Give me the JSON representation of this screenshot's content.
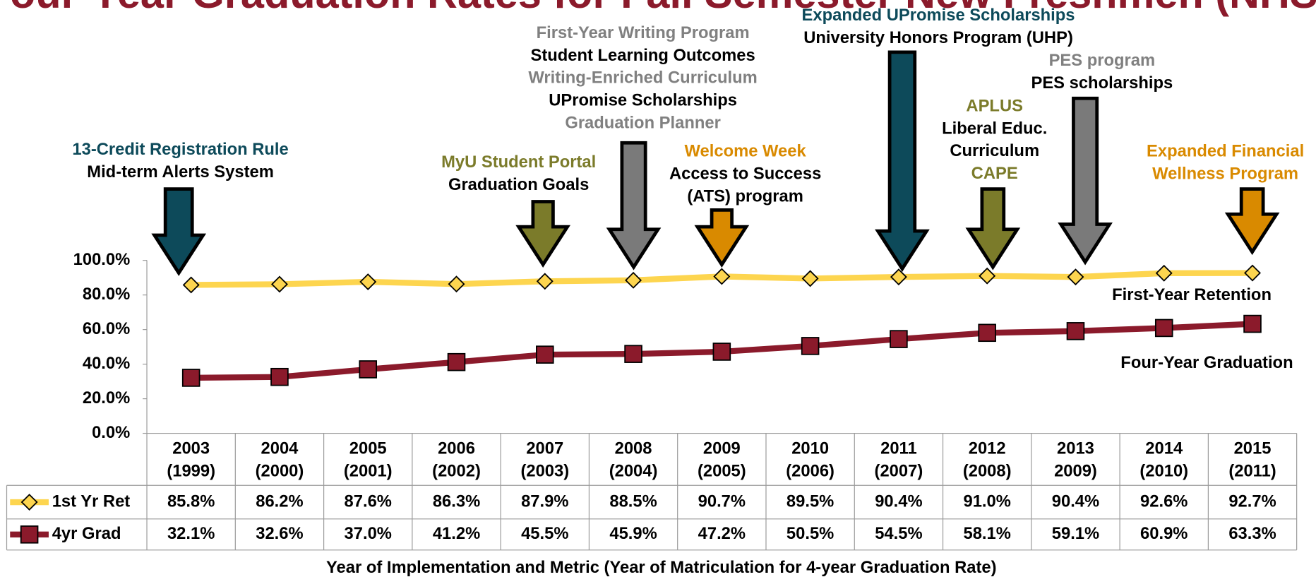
{
  "chart_data": {
    "type": "line",
    "title": "Four-Year Graduation Rates for Fall Semester New Freshmen (NHS)",
    "x_label": "Year of Implementation and Metric (Year of Matriculation for 4-year Graduation Rate)",
    "categories": [
      [
        "2003",
        "(1999)"
      ],
      [
        "2004",
        "(2000)"
      ],
      [
        "2005",
        "(2001)"
      ],
      [
        "2006",
        "(2002)"
      ],
      [
        "2007",
        "(2003)"
      ],
      [
        "2008",
        "(2004)"
      ],
      [
        "2009",
        "(2005)"
      ],
      [
        "2010",
        "(2006)"
      ],
      [
        "2011",
        "(2007)"
      ],
      [
        "2012",
        "(2008)"
      ],
      [
        "2013",
        "2009)"
      ],
      [
        "2014",
        "(2010)"
      ],
      [
        "2015",
        "(2011)"
      ]
    ],
    "ylim": [
      0,
      100
    ],
    "yticks": [
      {
        "value": 0,
        "label": "0.0%"
      },
      {
        "value": 20,
        "label": "20.0%"
      },
      {
        "value": 40,
        "label": "40.0%"
      },
      {
        "value": 60,
        "label": "60.0%"
      },
      {
        "value": 80,
        "label": "80.0%"
      },
      {
        "value": 100,
        "label": "100.0%"
      }
    ],
    "series": [
      {
        "name": "1st Yr Ret",
        "label": "First-Year Retention",
        "color": "#fdd54f",
        "marker": "diamond",
        "values": [
          85.8,
          86.2,
          87.6,
          86.3,
          87.9,
          88.5,
          90.7,
          89.5,
          90.4,
          91.0,
          90.4,
          92.6,
          92.7
        ],
        "value_labels": [
          "85.8%",
          "86.2%",
          "87.6%",
          "86.3%",
          "87.9%",
          "88.5%",
          "90.7%",
          "89.5%",
          "90.4%",
          "91.0%",
          "90.4%",
          "92.6%",
          "92.7%"
        ]
      },
      {
        "name": "4yr Grad",
        "label": "Four-Year Graduation",
        "color": "#8b1a2b",
        "marker": "square",
        "values": [
          32.1,
          32.6,
          37.0,
          41.2,
          45.5,
          45.9,
          47.2,
          50.5,
          54.5,
          58.1,
          59.1,
          60.9,
          63.3
        ],
        "value_labels": [
          "32.1%",
          "32.6%",
          "37.0%",
          "41.2%",
          "45.5%",
          "45.9%",
          "47.2%",
          "50.5%",
          "54.5%",
          "58.1%",
          "59.1%",
          "60.9%",
          "63.3%"
        ]
      }
    ],
    "annotations": [
      {
        "color": "#0d4a5a",
        "lines": [
          {
            "text": "13-Credit Registration Rule",
            "color": "#0d4a5a"
          },
          {
            "text": "Mid-term Alerts System",
            "color": "#000000"
          }
        ]
      },
      {
        "color": "#7b7b2a",
        "lines": [
          {
            "text": "MyU Student Portal",
            "color": "#7b7b2a"
          },
          {
            "text": "Graduation Goals",
            "color": "#000000"
          }
        ]
      },
      {
        "color": "#7a7a7a",
        "lines": [
          {
            "text": "First-Year Writing Program",
            "color": "#808080"
          },
          {
            "text": "Student Learning Outcomes",
            "color": "#000000"
          },
          {
            "text": "Writing-Enriched Curriculum",
            "color": "#808080"
          },
          {
            "text": "UPromise Scholarships",
            "color": "#000000"
          },
          {
            "text": "Graduation Planner",
            "color": "#808080"
          }
        ]
      },
      {
        "color": "#d98a00",
        "lines": [
          {
            "text": "Welcome Week",
            "color": "#d98a00"
          },
          {
            "text": "Access to Success",
            "color": "#000000"
          },
          {
            "text": "(ATS) program",
            "color": "#000000"
          }
        ]
      },
      {
        "color": "#0d4a5a",
        "lines": [
          {
            "text": "Expanded UPromise Scholarships",
            "color": "#0d4a5a"
          },
          {
            "text": "University Honors  Program (UHP)",
            "color": "#000000"
          }
        ]
      },
      {
        "color": "#7b7b2a",
        "lines": [
          {
            "text": "APLUS",
            "color": "#7b7b2a"
          },
          {
            "text": "Liberal Educ.",
            "color": "#000000"
          },
          {
            "text": "Curriculum",
            "color": "#000000"
          },
          {
            "text": "CAPE",
            "color": "#7b7b2a"
          }
        ]
      },
      {
        "color": "#7a7a7a",
        "lines": [
          {
            "text": "PES program",
            "color": "#808080"
          },
          {
            "text": "PES scholarships",
            "color": "#000000"
          }
        ]
      },
      {
        "color": "#d98a00",
        "lines": [
          {
            "text": "Expanded Financial",
            "color": "#d98a00"
          },
          {
            "text": "Wellness Program",
            "color": "#d98a00"
          }
        ]
      }
    ]
  }
}
